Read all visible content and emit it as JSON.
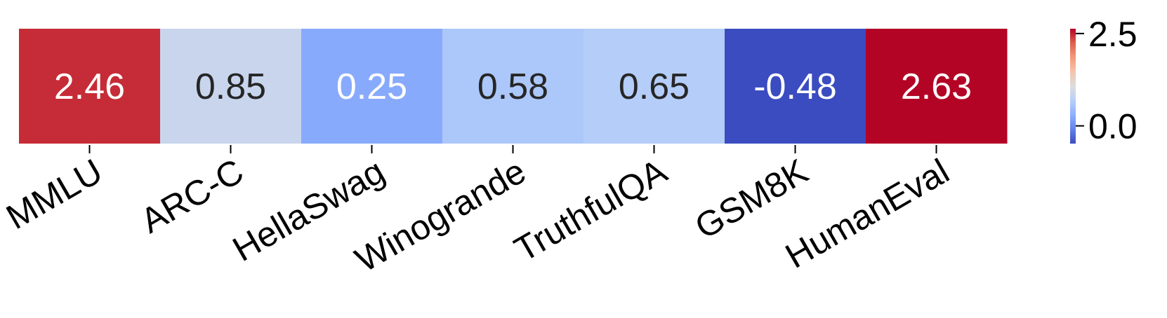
{
  "chart_data": {
    "type": "heatmap",
    "title": "",
    "xlabel": "",
    "ylabel": "",
    "categories": [
      "MMLU",
      "ARC-C",
      "HellaSwag",
      "Winogrande",
      "TruthfulQA",
      "GSM8K",
      "HumanEval"
    ],
    "values": [
      2.46,
      0.85,
      0.25,
      0.58,
      0.65,
      -0.48,
      2.63
    ],
    "value_labels": [
      "2.46",
      "0.85",
      "0.25",
      "0.58",
      "0.65",
      "-0.48",
      "2.63"
    ],
    "colormap": "coolwarm",
    "vmin": -0.48,
    "vmax": 2.63,
    "colorbar": {
      "position": "right",
      "ticks": [
        0.0,
        2.5
      ],
      "tick_labels": [
        "0.0",
        "2.5"
      ]
    },
    "colors": {
      "low": "#3b4cc0",
      "mid": "#dddddd",
      "high": "#b40426",
      "text_light": "#ffffff",
      "text_dark": "#262626"
    }
  }
}
